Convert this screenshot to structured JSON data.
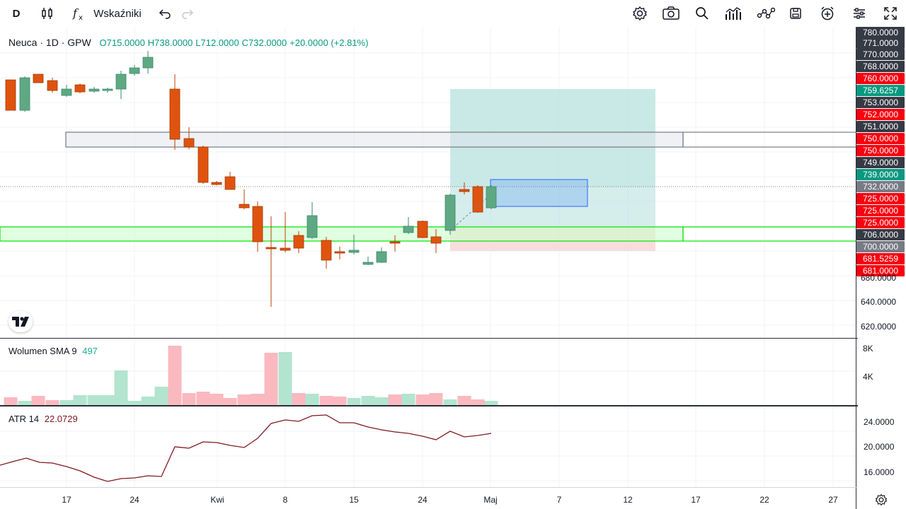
{
  "toolbar": {
    "interval": "D",
    "indicators_label": "Wskaźniki"
  },
  "symbol": {
    "name": "Neuca",
    "interval": "1D",
    "exchange": "GPW",
    "open": "O715.0000",
    "high": "H738.0000",
    "low": "L712.0000",
    "close": "C732.0000",
    "change": "+20.0000 (+2.81%)"
  },
  "volume": {
    "label": "Wolumen SMA 9",
    "value": "497"
  },
  "atr": {
    "label": "ATR 14",
    "value": "22.0729"
  },
  "price_axis": {
    "labels": [
      {
        "text": "780.0000",
        "bg": "#363a45"
      },
      {
        "text": "771.0000",
        "bg": "#363a45"
      },
      {
        "text": "770.0000",
        "bg": "#363a45"
      },
      {
        "text": "768.0000",
        "bg": "#363a45"
      },
      {
        "text": "760.0000",
        "bg": "#f7000f"
      },
      {
        "text": "759.6257",
        "bg": "#089981"
      },
      {
        "text": "753.0000",
        "bg": "#363a45"
      },
      {
        "text": "752.0000",
        "bg": "#f7000f"
      },
      {
        "text": "751.0000",
        "bg": "#363a45"
      },
      {
        "text": "750.0000",
        "bg": "#f7000f"
      },
      {
        "text": "750.0000",
        "bg": "#f7000f"
      },
      {
        "text": "749.0000",
        "bg": "#363a45"
      },
      {
        "text": "739.0000",
        "bg": "#089981"
      },
      {
        "text": "732.0000",
        "bg": "#787b86"
      },
      {
        "text": "725.0000",
        "bg": "#f7000f"
      },
      {
        "text": "725.0000",
        "bg": "#f7000f"
      },
      {
        "text": "725.0000",
        "bg": "#f7000f"
      },
      {
        "text": "706.0000",
        "bg": "#363a45"
      },
      {
        "text": "700.0000",
        "bg": "#787b86"
      },
      {
        "text": "681.5259",
        "bg": "#f7000f"
      },
      {
        "text": "681.0000",
        "bg": "#f7000f"
      }
    ],
    "ticks": [
      "680.0000",
      "640.0000",
      "620.0000"
    ]
  },
  "volume_axis": {
    "ticks": [
      "8K",
      "4K"
    ]
  },
  "atr_axis": {
    "ticks": [
      "24.0000",
      "20.0000",
      "16.0000"
    ]
  },
  "time_axis": {
    "labels": [
      "17",
      "24",
      "Kwi",
      "8",
      "15",
      "24",
      "Maj",
      "7",
      "12",
      "17",
      "22",
      "27"
    ]
  },
  "colors": {
    "up": "#089981",
    "down": "#f7525f",
    "bull_body": "#5fa884",
    "bear_body": "#e0530f",
    "target_zone": "#b2dfdb",
    "stop_zone": "#fbdadd",
    "support_zone": "#ccffcc",
    "support_border": "#00e600",
    "atr_line": "#801922",
    "vol_up": "#b2e4cf",
    "vol_down": "#f9b9bf"
  },
  "icons": [
    "bar-style-icon",
    "indicators-fx-icon",
    "undo-icon",
    "redo-icon",
    "settings-icon",
    "camera-icon",
    "search-icon",
    "chart-type-icon",
    "compare-icon",
    "save-icon",
    "alert-add-icon",
    "layout-icon",
    "fullscreen-icon",
    "tradingview-logo",
    "axis-settings-icon"
  ]
}
